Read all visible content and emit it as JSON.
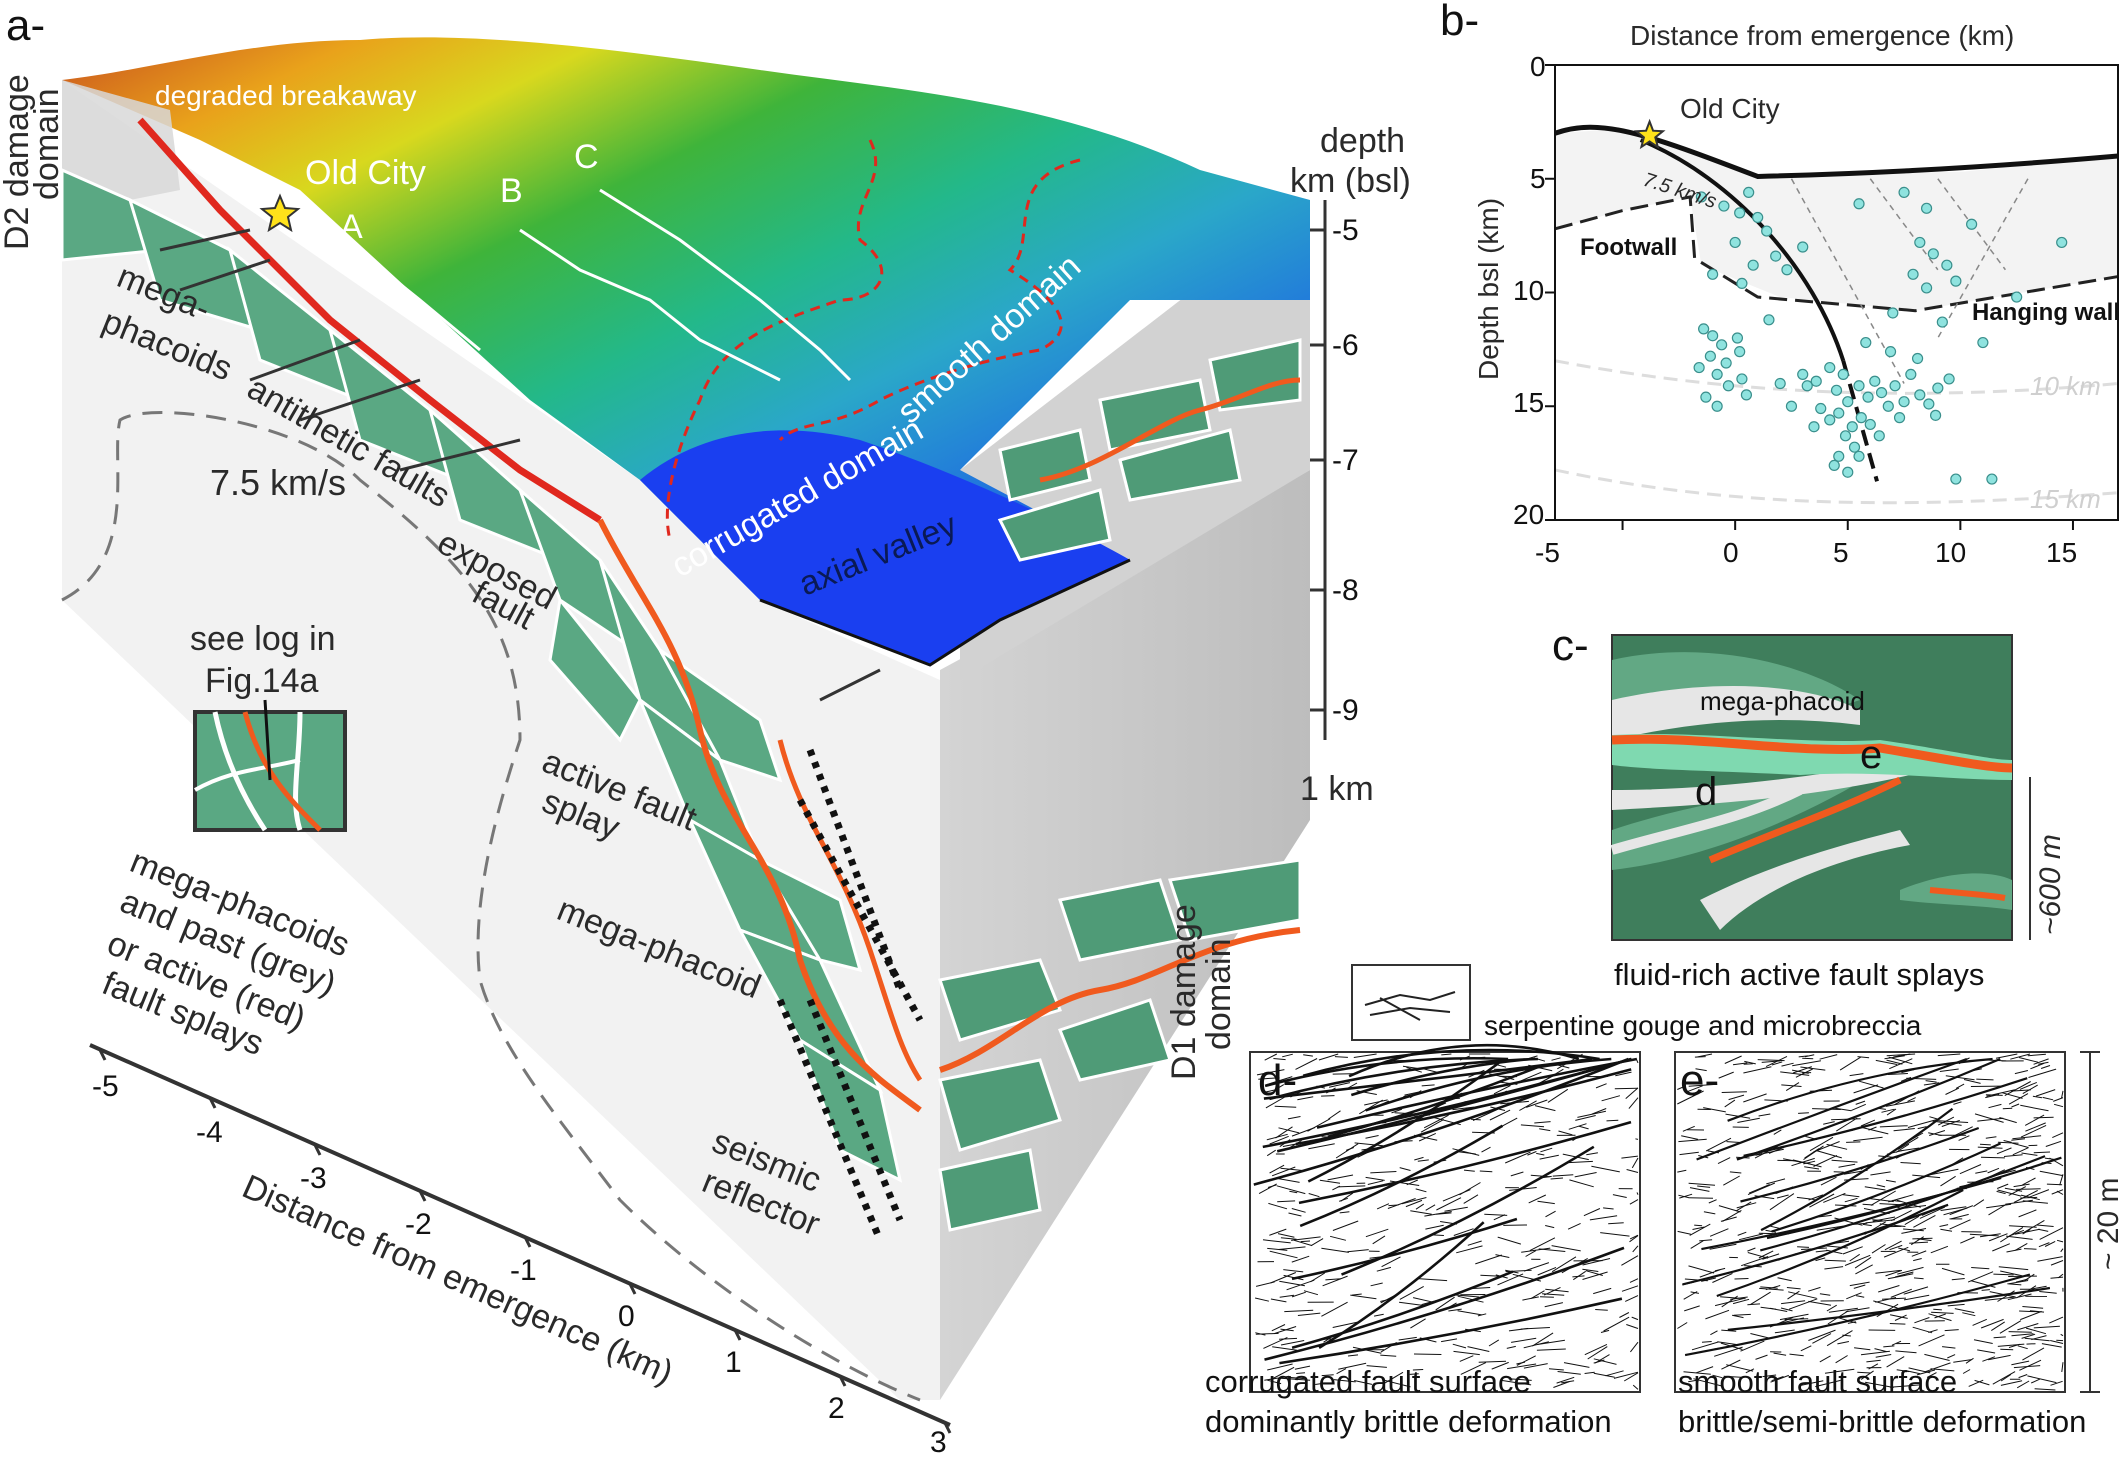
{
  "panel_a": {
    "panel_label": "a-",
    "labels": {
      "d2_domain_line1": "D2 damage",
      "d2_domain_line2": "domain",
      "degraded_breakaway": "degraded breakaway",
      "old_city": "Old City",
      "profile_a": "A",
      "profile_b": "B",
      "profile_c": "C",
      "mega_phacoids_line1": "mega-",
      "mega_phacoids_line2": "phacoids",
      "antithetic_faults": "antithetic faults",
      "velocity": "7.5 km/s",
      "exposed_fault_line1": "exposed",
      "exposed_fault_line2": "fault",
      "corrugated_domain": "corrugated domain",
      "smooth_domain": "smooth domain",
      "axial_valley": "axial valley",
      "see_log_line1": "see log in",
      "see_log_line2": "Fig.14a",
      "legend_line1": "mega-phacoids",
      "legend_line2": "and past (grey)",
      "legend_line3": "or active (red)",
      "legend_line4": "fault splays",
      "active_splay_line1": "active fault",
      "active_splay_line2": "splay",
      "mega_phacoid": "mega-phacoid",
      "seismic_line1": "seismic",
      "seismic_line2": "reflector",
      "d1_domain_line1": "D1 damage",
      "d1_domain_line2": "domain",
      "scale_1km": "1 km"
    },
    "depth_axis": {
      "title_line1": "depth",
      "title_line2": "km (bsl)",
      "ticks": [
        "-5",
        "-6",
        "-7",
        "-8",
        "-9"
      ]
    },
    "distance_axis": {
      "title": "Distance from emergence (km)",
      "ticks": [
        "-5",
        "-4",
        "-3",
        "-2",
        "-1",
        "0",
        "1",
        "2",
        "3"
      ]
    }
  },
  "panel_b": {
    "panel_label": "b-",
    "x_title": "Distance from emergence (km)",
    "y_title": "Depth bsl (km)",
    "x_ticks": [
      "-5",
      "0",
      "5",
      "10",
      "15"
    ],
    "y_ticks": [
      "0",
      "5",
      "10",
      "15",
      "20"
    ],
    "old_city": "Old City",
    "velocity": "7.5 km/s",
    "footwall": "Footwall",
    "hanging_wall": "Hanging wall",
    "contour_10": "10 km",
    "contour_15": "15 km"
  },
  "panel_c": {
    "panel_label": "c-",
    "mega_phacoid": "mega-phacoid",
    "label_d": "d",
    "label_e": "e",
    "scale": "~600 m",
    "caption": "fluid-rich active fault splays"
  },
  "legend_serpentine": "serpentine gouge and microbreccia",
  "panel_d": {
    "panel_label": "d-",
    "caption_line1": "corrugated fault surface",
    "caption_line2": "dominantly brittle deformation"
  },
  "panel_e": {
    "panel_label": "e-",
    "caption_line1": "smooth fault surface",
    "caption_line2": "brittle/semi-brittle deformation",
    "scale": "~ 20 m"
  },
  "chart_data": {
    "type": "scatter",
    "xlabel": "Distance from emergence (km)",
    "ylabel": "Depth bsl (km)",
    "xlim": [
      -8,
      17
    ],
    "ylim": [
      20,
      0
    ],
    "series": [
      {
        "points": [
          [
            -1.5,
            5.8
          ],
          [
            -0.5,
            6.2
          ],
          [
            0,
            7.8
          ],
          [
            0.2,
            6.5
          ],
          [
            0.6,
            5.6
          ],
          [
            1,
            6.7
          ],
          [
            1.4,
            7.3
          ],
          [
            0.8,
            8.8
          ],
          [
            -1,
            9.2
          ],
          [
            0.3,
            9.6
          ],
          [
            1.8,
            8.4
          ],
          [
            2.3,
            9
          ],
          [
            3,
            8
          ],
          [
            5.5,
            6.1
          ],
          [
            7.5,
            5.6
          ],
          [
            8.5,
            6.3
          ],
          [
            10.5,
            7
          ],
          [
            8.2,
            7.8
          ],
          [
            8.8,
            8.3
          ],
          [
            9.4,
            8.8
          ],
          [
            7.9,
            9.2
          ],
          [
            9.8,
            9.5
          ],
          [
            8.5,
            9.8
          ],
          [
            14.5,
            7.8
          ],
          [
            11,
            12.2
          ],
          [
            -1.4,
            11.6
          ],
          [
            -1,
            11.9
          ],
          [
            -0.6,
            12.3
          ],
          [
            -1.1,
            12.8
          ],
          [
            -0.4,
            13.1
          ],
          [
            0.2,
            12.6
          ],
          [
            -0.8,
            13.6
          ],
          [
            -0.3,
            14.1
          ],
          [
            0.3,
            13.8
          ],
          [
            -1.3,
            14.6
          ],
          [
            -0.8,
            15
          ],
          [
            0.1,
            12
          ],
          [
            -1.6,
            13.3
          ],
          [
            0.5,
            14.5
          ],
          [
            1.5,
            11.2
          ],
          [
            3,
            13.6
          ],
          [
            3.2,
            14.1
          ],
          [
            3.6,
            13.9
          ],
          [
            4.2,
            13.3
          ],
          [
            4.5,
            14.3
          ],
          [
            4.8,
            13.6
          ],
          [
            5,
            14.8
          ],
          [
            5.5,
            14.1
          ],
          [
            5.9,
            14.6
          ],
          [
            6.2,
            13.9
          ],
          [
            6.5,
            14.4
          ],
          [
            6.8,
            15
          ],
          [
            7.1,
            14.1
          ],
          [
            7.5,
            14.8
          ],
          [
            7.8,
            13.6
          ],
          [
            8.2,
            14.5
          ],
          [
            8.6,
            14.9
          ],
          [
            9,
            14.2
          ],
          [
            9.5,
            13.8
          ],
          [
            3.8,
            15.1
          ],
          [
            4.2,
            15.6
          ],
          [
            4.6,
            15.3
          ],
          [
            5.2,
            15.9
          ],
          [
            5.6,
            15.5
          ],
          [
            6,
            15.8
          ],
          [
            4.9,
            16.3
          ],
          [
            5.3,
            16.8
          ],
          [
            4.6,
            17.2
          ],
          [
            4.4,
            17.6
          ],
          [
            5,
            17.9
          ],
          [
            2.5,
            15
          ],
          [
            2,
            14
          ],
          [
            6.9,
            12.6
          ],
          [
            5.8,
            12.2
          ],
          [
            8.1,
            12.9
          ],
          [
            9.2,
            11.3
          ],
          [
            7,
            10.9
          ],
          [
            12.5,
            10.2
          ],
          [
            9.8,
            18.2
          ],
          [
            11.4,
            18.2
          ],
          [
            3.5,
            15.9
          ],
          [
            7.3,
            15.5
          ],
          [
            8.9,
            15.4
          ],
          [
            6.4,
            16.3
          ],
          [
            5.5,
            17.2
          ]
        ]
      }
    ]
  }
}
